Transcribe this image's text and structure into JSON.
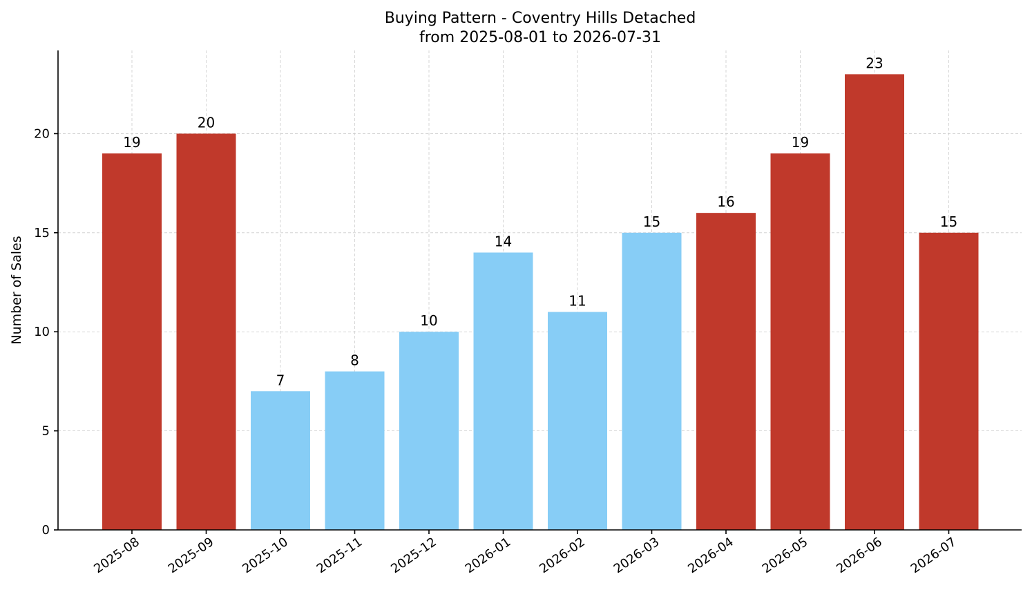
{
  "chart_data": {
    "type": "bar",
    "title": "Buying Pattern - Coventry Hills Detached",
    "subtitle": "from 2025-08-01 to 2026-07-31",
    "xlabel": "",
    "ylabel": "Number of Sales",
    "categories": [
      "2025-08",
      "2025-09",
      "2025-10",
      "2025-11",
      "2025-12",
      "2026-01",
      "2026-02",
      "2026-03",
      "2026-04",
      "2026-05",
      "2026-06",
      "2026-07"
    ],
    "values": [
      19,
      20,
      7,
      8,
      10,
      14,
      11,
      15,
      16,
      19,
      23,
      15
    ],
    "bar_colors": [
      "#c0392b",
      "#c0392b",
      "#87cdf6",
      "#87cdf6",
      "#87cdf6",
      "#87cdf6",
      "#87cdf6",
      "#87cdf6",
      "#c0392b",
      "#c0392b",
      "#c0392b",
      "#c0392b"
    ],
    "ylim": [
      0,
      24.2
    ],
    "yticks": [
      0,
      5,
      10,
      15,
      20
    ],
    "grid": true,
    "data_labels": true
  }
}
